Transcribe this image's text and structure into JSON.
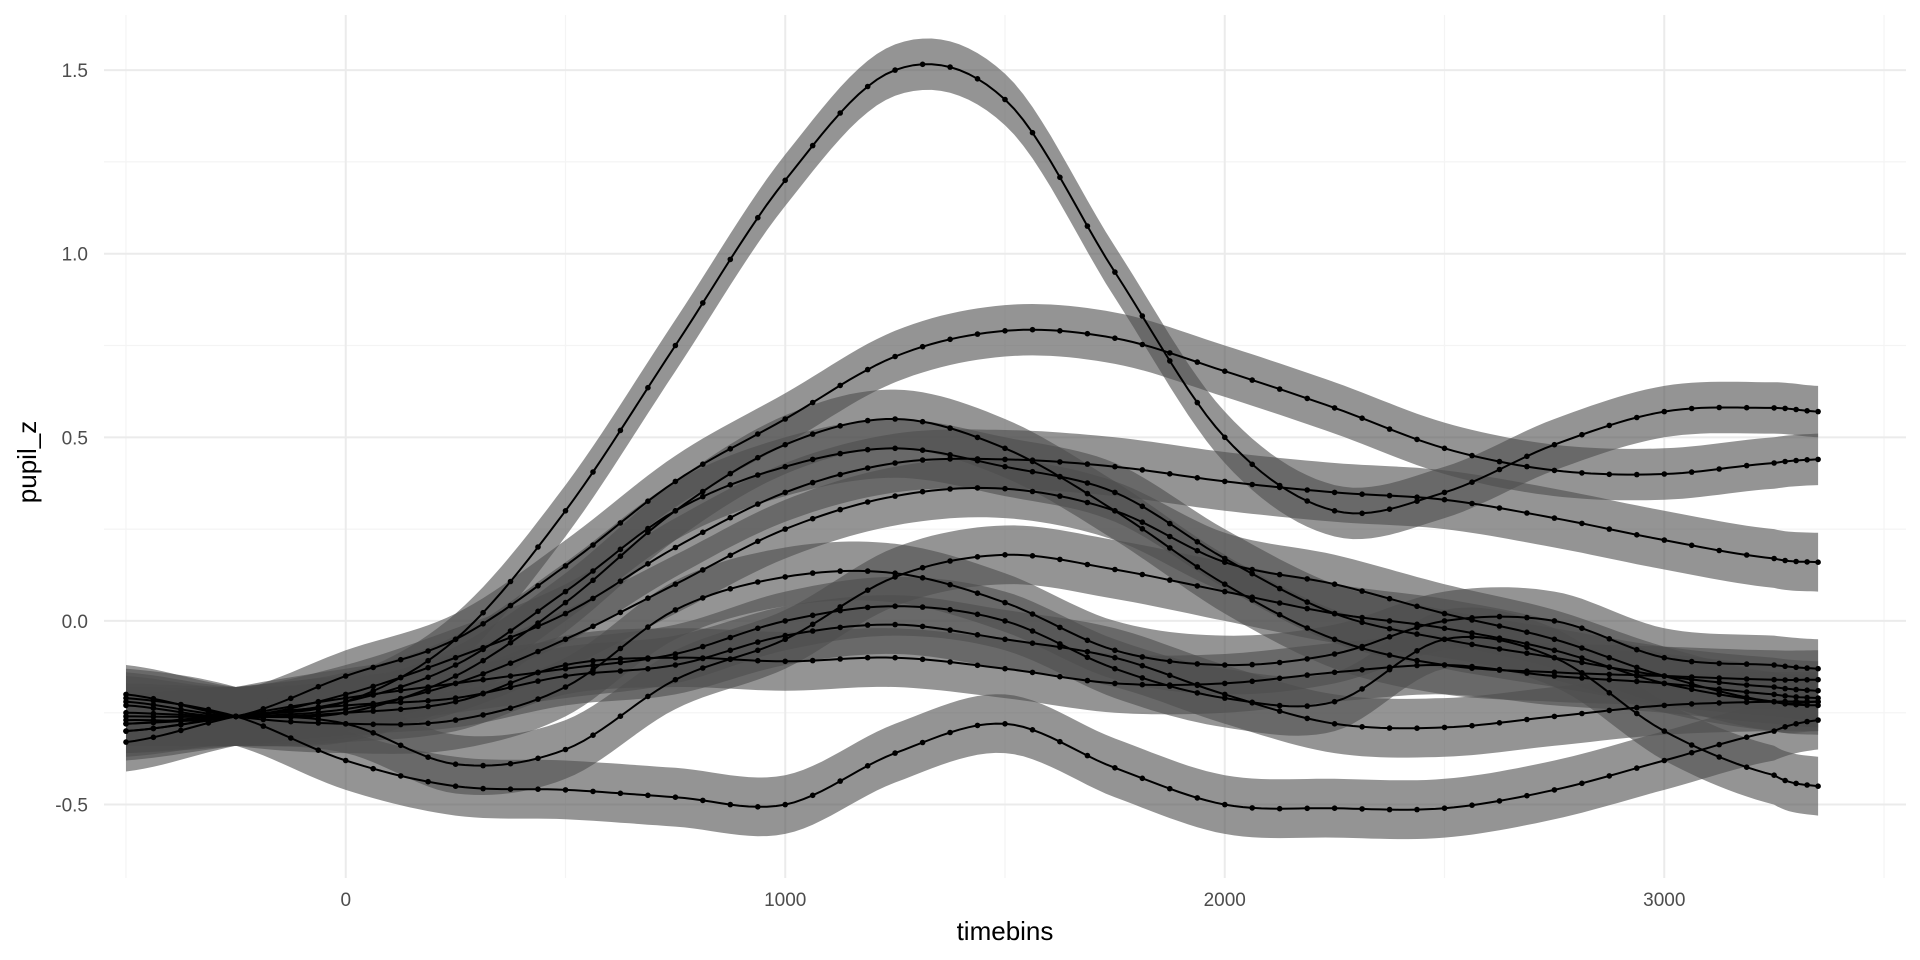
{
  "chart_data": {
    "type": "line",
    "title": "",
    "xlabel": "timebins",
    "ylabel": "pupil_z",
    "xlim": [
      -550,
      3550
    ],
    "ylim": [
      -0.7,
      1.65
    ],
    "x_ticks": [
      0,
      1000,
      2000,
      3000
    ],
    "x_tick_labels": [
      "0",
      "1000",
      "2000",
      "3000"
    ],
    "x_minor_ticks": [
      -500,
      500,
      1500,
      2500,
      3500
    ],
    "y_ticks": [
      -0.5,
      0.0,
      0.5,
      1.0,
      1.5
    ],
    "y_tick_labels": [
      "-0.5",
      "0.0",
      "0.5",
      "1.0",
      "1.5"
    ],
    "y_minor_ticks": [
      -0.25,
      0.25,
      0.75,
      1.25
    ],
    "grid": true,
    "legend": "none",
    "x": [
      -500,
      -250,
      0,
      250,
      500,
      750,
      1000,
      1250,
      1500,
      1750,
      2000,
      2250,
      2500,
      2750,
      3000,
      3250,
      3350
    ],
    "series": [
      {
        "values": [
          -0.3,
          -0.26,
          -0.22,
          -0.05,
          0.3,
          0.75,
          1.2,
          1.5,
          1.42,
          0.95,
          0.5,
          0.3,
          0.35,
          0.48,
          0.57,
          0.58,
          0.57
        ],
        "ribbon": 0.07
      },
      {
        "values": [
          -0.27,
          -0.26,
          -0.15,
          -0.05,
          0.15,
          0.38,
          0.55,
          0.72,
          0.79,
          0.77,
          0.68,
          0.58,
          0.47,
          0.41,
          0.4,
          0.43,
          0.44
        ],
        "ribbon": 0.07
      },
      {
        "values": [
          -0.25,
          -0.26,
          -0.25,
          -0.15,
          0.05,
          0.3,
          0.48,
          0.55,
          0.47,
          0.3,
          0.1,
          -0.05,
          -0.12,
          -0.14,
          -0.15,
          -0.16,
          -0.16
        ],
        "ribbon": 0.08
      },
      {
        "values": [
          -0.28,
          -0.26,
          -0.22,
          -0.12,
          0.08,
          0.3,
          0.42,
          0.47,
          0.42,
          0.35,
          0.17,
          0.02,
          -0.05,
          -0.1,
          -0.15,
          -0.18,
          -0.19
        ],
        "ribbon": 0.08
      },
      {
        "values": [
          -0.23,
          -0.26,
          -0.2,
          -0.1,
          0.02,
          0.2,
          0.35,
          0.43,
          0.44,
          0.42,
          0.38,
          0.35,
          0.33,
          0.28,
          0.22,
          0.17,
          0.16
        ],
        "ribbon": 0.08
      },
      {
        "values": [
          -0.26,
          -0.26,
          -0.24,
          -0.17,
          -0.05,
          0.1,
          0.25,
          0.34,
          0.36,
          0.3,
          0.16,
          0.1,
          0.02,
          -0.05,
          -0.15,
          -0.22,
          -0.22
        ],
        "ribbon": 0.08
      },
      {
        "values": [
          -0.2,
          -0.26,
          -0.28,
          -0.27,
          -0.18,
          0.03,
          0.12,
          0.13,
          0.05,
          -0.08,
          -0.12,
          -0.09,
          0.0,
          0.0,
          -0.1,
          -0.12,
          -0.13
        ],
        "ribbon": 0.08
      },
      {
        "values": [
          -0.33,
          -0.26,
          -0.21,
          -0.17,
          -0.13,
          -0.09,
          0.0,
          0.04,
          0.0,
          -0.13,
          -0.21,
          -0.22,
          -0.05,
          -0.1,
          -0.3,
          -0.42,
          -0.45
        ],
        "ribbon": 0.08
      },
      {
        "values": [
          -0.28,
          -0.26,
          -0.28,
          -0.39,
          -0.35,
          -0.16,
          -0.05,
          0.12,
          0.18,
          0.14,
          0.08,
          0.02,
          -0.02,
          -0.08,
          -0.17,
          -0.22,
          -0.23
        ],
        "ribbon": 0.08
      },
      {
        "values": [
          -0.22,
          -0.26,
          -0.25,
          -0.22,
          -0.12,
          -0.1,
          -0.11,
          -0.1,
          -0.13,
          -0.17,
          -0.17,
          -0.14,
          -0.12,
          -0.15,
          -0.17,
          -0.2,
          -0.21
        ],
        "ribbon": 0.08
      },
      {
        "values": [
          -0.3,
          -0.26,
          -0.23,
          -0.21,
          -0.15,
          -0.12,
          -0.04,
          -0.01,
          -0.05,
          -0.1,
          -0.2,
          -0.28,
          -0.29,
          -0.26,
          -0.23,
          -0.22,
          -0.22
        ],
        "ribbon": 0.08
      },
      {
        "values": [
          -0.21,
          -0.26,
          -0.38,
          -0.45,
          -0.46,
          -0.48,
          -0.5,
          -0.36,
          -0.28,
          -0.4,
          -0.5,
          -0.51,
          -0.51,
          -0.46,
          -0.38,
          -0.3,
          -0.27
        ],
        "ribbon": 0.08
      }
    ],
    "colors": {
      "line": "#000000",
      "ribbon": "#4d4d4d",
      "grid_major": "#ebebeb",
      "grid_minor": "#f4f4f4",
      "background": "#ffffff"
    }
  }
}
